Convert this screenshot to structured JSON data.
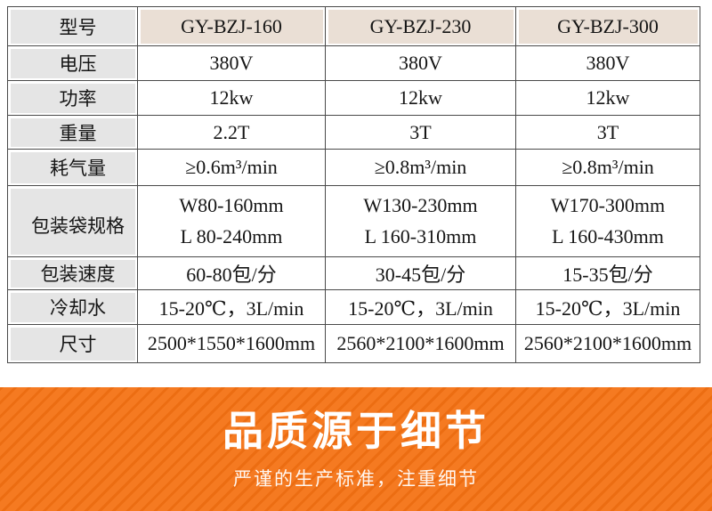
{
  "table": {
    "header": {
      "label": "型号",
      "models": [
        "GY-BZJ-160",
        "GY-BZJ-230",
        "GY-BZJ-300"
      ]
    },
    "rows": [
      {
        "label": "电压",
        "values": [
          "380V",
          "380V",
          "380V"
        ]
      },
      {
        "label": "功率",
        "values": [
          "12kw",
          "12kw",
          "12kw"
        ]
      },
      {
        "label": "重量",
        "values": [
          "2.2T",
          "3T",
          "3T"
        ]
      },
      {
        "label": "耗气量",
        "values": [
          "≥0.6m³/min",
          "≥0.8m³/min",
          "≥0.8m³/min"
        ]
      },
      {
        "label": "包装袋规格",
        "line1": [
          "W80-160mm",
          "W130-230mm",
          "W170-300mm"
        ],
        "line2": [
          "L 80-240mm",
          "L 160-310mm",
          "L 160-430mm"
        ]
      },
      {
        "label": "包装速度",
        "values": [
          "60-80包/分",
          "30-45包/分",
          "15-35包/分"
        ]
      },
      {
        "label": "冷却水",
        "values": [
          "15-20℃，3L/min",
          "15-20℃，3L/min",
          "15-20℃，3L/min"
        ]
      },
      {
        "label": "尺寸",
        "values": [
          "2500*1550*1600mm",
          "2560*2100*1600mm",
          "2560*2100*1600mm"
        ]
      }
    ]
  },
  "banner": {
    "title": "品质源于细节",
    "subtitle": "严谨的生产标准，注重细节"
  },
  "colors": {
    "banner_orange": "#f57a21",
    "banner_stripe": "#ec6d12",
    "model_header_bg": "#eadfd5",
    "label_column_bg": "#e5e5e5",
    "table_border": "#4a4a4a",
    "banner_text": "#ffffff"
  }
}
